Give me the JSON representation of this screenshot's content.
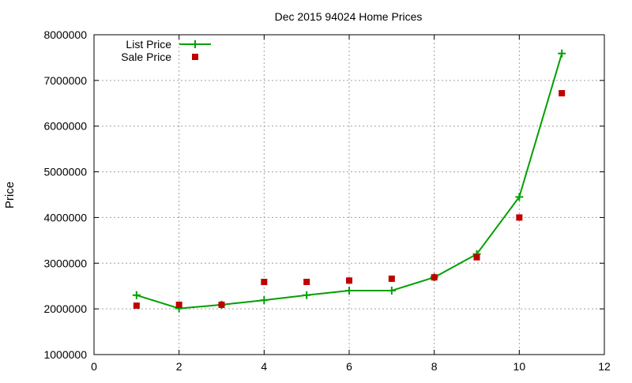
{
  "chart_data": {
    "type": "line",
    "title": "Dec 2015 94024 Home Prices",
    "xlabel": "",
    "ylabel": "Price",
    "xlim": [
      0,
      12
    ],
    "ylim": [
      1000000,
      8000000
    ],
    "x_ticks": [
      0,
      2,
      4,
      6,
      8,
      10,
      12
    ],
    "y_ticks": [
      1000000,
      2000000,
      3000000,
      4000000,
      5000000,
      6000000,
      7000000,
      8000000
    ],
    "x_tick_labels": [
      "0",
      "2",
      "4",
      "6",
      "8",
      "10",
      "12"
    ],
    "y_tick_labels": [
      "1000000",
      "2000000",
      "3000000",
      "4000000",
      "5000000",
      "6000000",
      "7000000",
      "8000000"
    ],
    "grid": true,
    "legend_position": "top-left",
    "x": [
      1,
      2,
      3,
      4,
      5,
      6,
      7,
      8,
      9,
      10,
      11
    ],
    "series": [
      {
        "name": "List Price",
        "style": "line-with-plus-markers",
        "color": "#00a000",
        "values": [
          2300000,
          2010000,
          2090000,
          2190000,
          2300000,
          2400000,
          2400000,
          2690000,
          3200000,
          4450000,
          7590000
        ]
      },
      {
        "name": "Sale Price",
        "style": "square-markers",
        "color": "#c00000",
        "values": [
          2070000,
          2090000,
          2090000,
          2590000,
          2590000,
          2620000,
          2660000,
          2690000,
          3130000,
          4000000,
          6720000
        ]
      }
    ]
  }
}
